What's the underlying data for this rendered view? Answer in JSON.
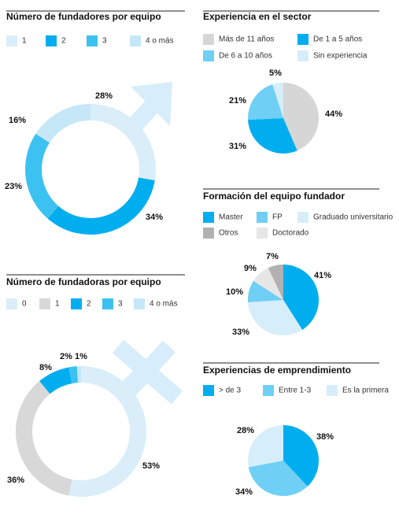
{
  "chart_data": [
    {
      "type": "donut",
      "title": "Número de fundadores por equipo",
      "categories": [
        "1",
        "2",
        "3",
        "4 o más"
      ],
      "values": [
        28,
        34,
        23,
        16
      ],
      "value_labels": [
        "28%",
        "34%",
        "23%",
        "16%"
      ],
      "colors": [
        "#daeef9",
        "#00aeef",
        "#3cc2f1",
        "#c6e7f8"
      ]
    },
    {
      "type": "pie",
      "title": "Experiencia en el sector",
      "categories": [
        "Más de 11 años",
        "De 1 a 5 años",
        "De 6 a 10 años",
        "Sin experiencia"
      ],
      "values": [
        44,
        31,
        21,
        5
      ],
      "value_labels": [
        "44%",
        "31%",
        "21%",
        "5%"
      ],
      "colors": [
        "#d6d6d6",
        "#00aeef",
        "#6fcff5",
        "#d6eef9"
      ]
    },
    {
      "type": "pie",
      "title": "Formación del equipo fundador",
      "categories": [
        "Master",
        "Graduado universitario",
        "FP",
        "Doctorado",
        "Otros"
      ],
      "values": [
        41,
        33,
        10,
        9,
        7
      ],
      "value_labels": [
        "41%",
        "33%",
        "10%",
        "9%",
        "7%"
      ],
      "colors": [
        "#00aeef",
        "#d6eef9",
        "#6fcff5",
        "#e6e6e6",
        "#b1b1b1"
      ]
    },
    {
      "type": "donut",
      "title": "Número de fundadoras por equipo",
      "categories": [
        "0",
        "1",
        "2",
        "3",
        "4 o más"
      ],
      "values": [
        53,
        36,
        8,
        2,
        1
      ],
      "value_labels": [
        "53%",
        "36%",
        "8%",
        "2%",
        "1%"
      ],
      "colors": [
        "#daeef9",
        "#d8d8d8",
        "#00aeef",
        "#3cc2f1",
        "#c6e7f8"
      ]
    },
    {
      "type": "pie",
      "title": "Experiencias de emprendimiento",
      "categories": [
        "> de 3",
        "Entre 1-3",
        "Es la primera"
      ],
      "values": [
        38,
        34,
        28
      ],
      "value_labels": [
        "38%",
        "34%",
        "28%"
      ],
      "colors": [
        "#00aeef",
        "#6fcff5",
        "#d6eef9"
      ]
    }
  ]
}
